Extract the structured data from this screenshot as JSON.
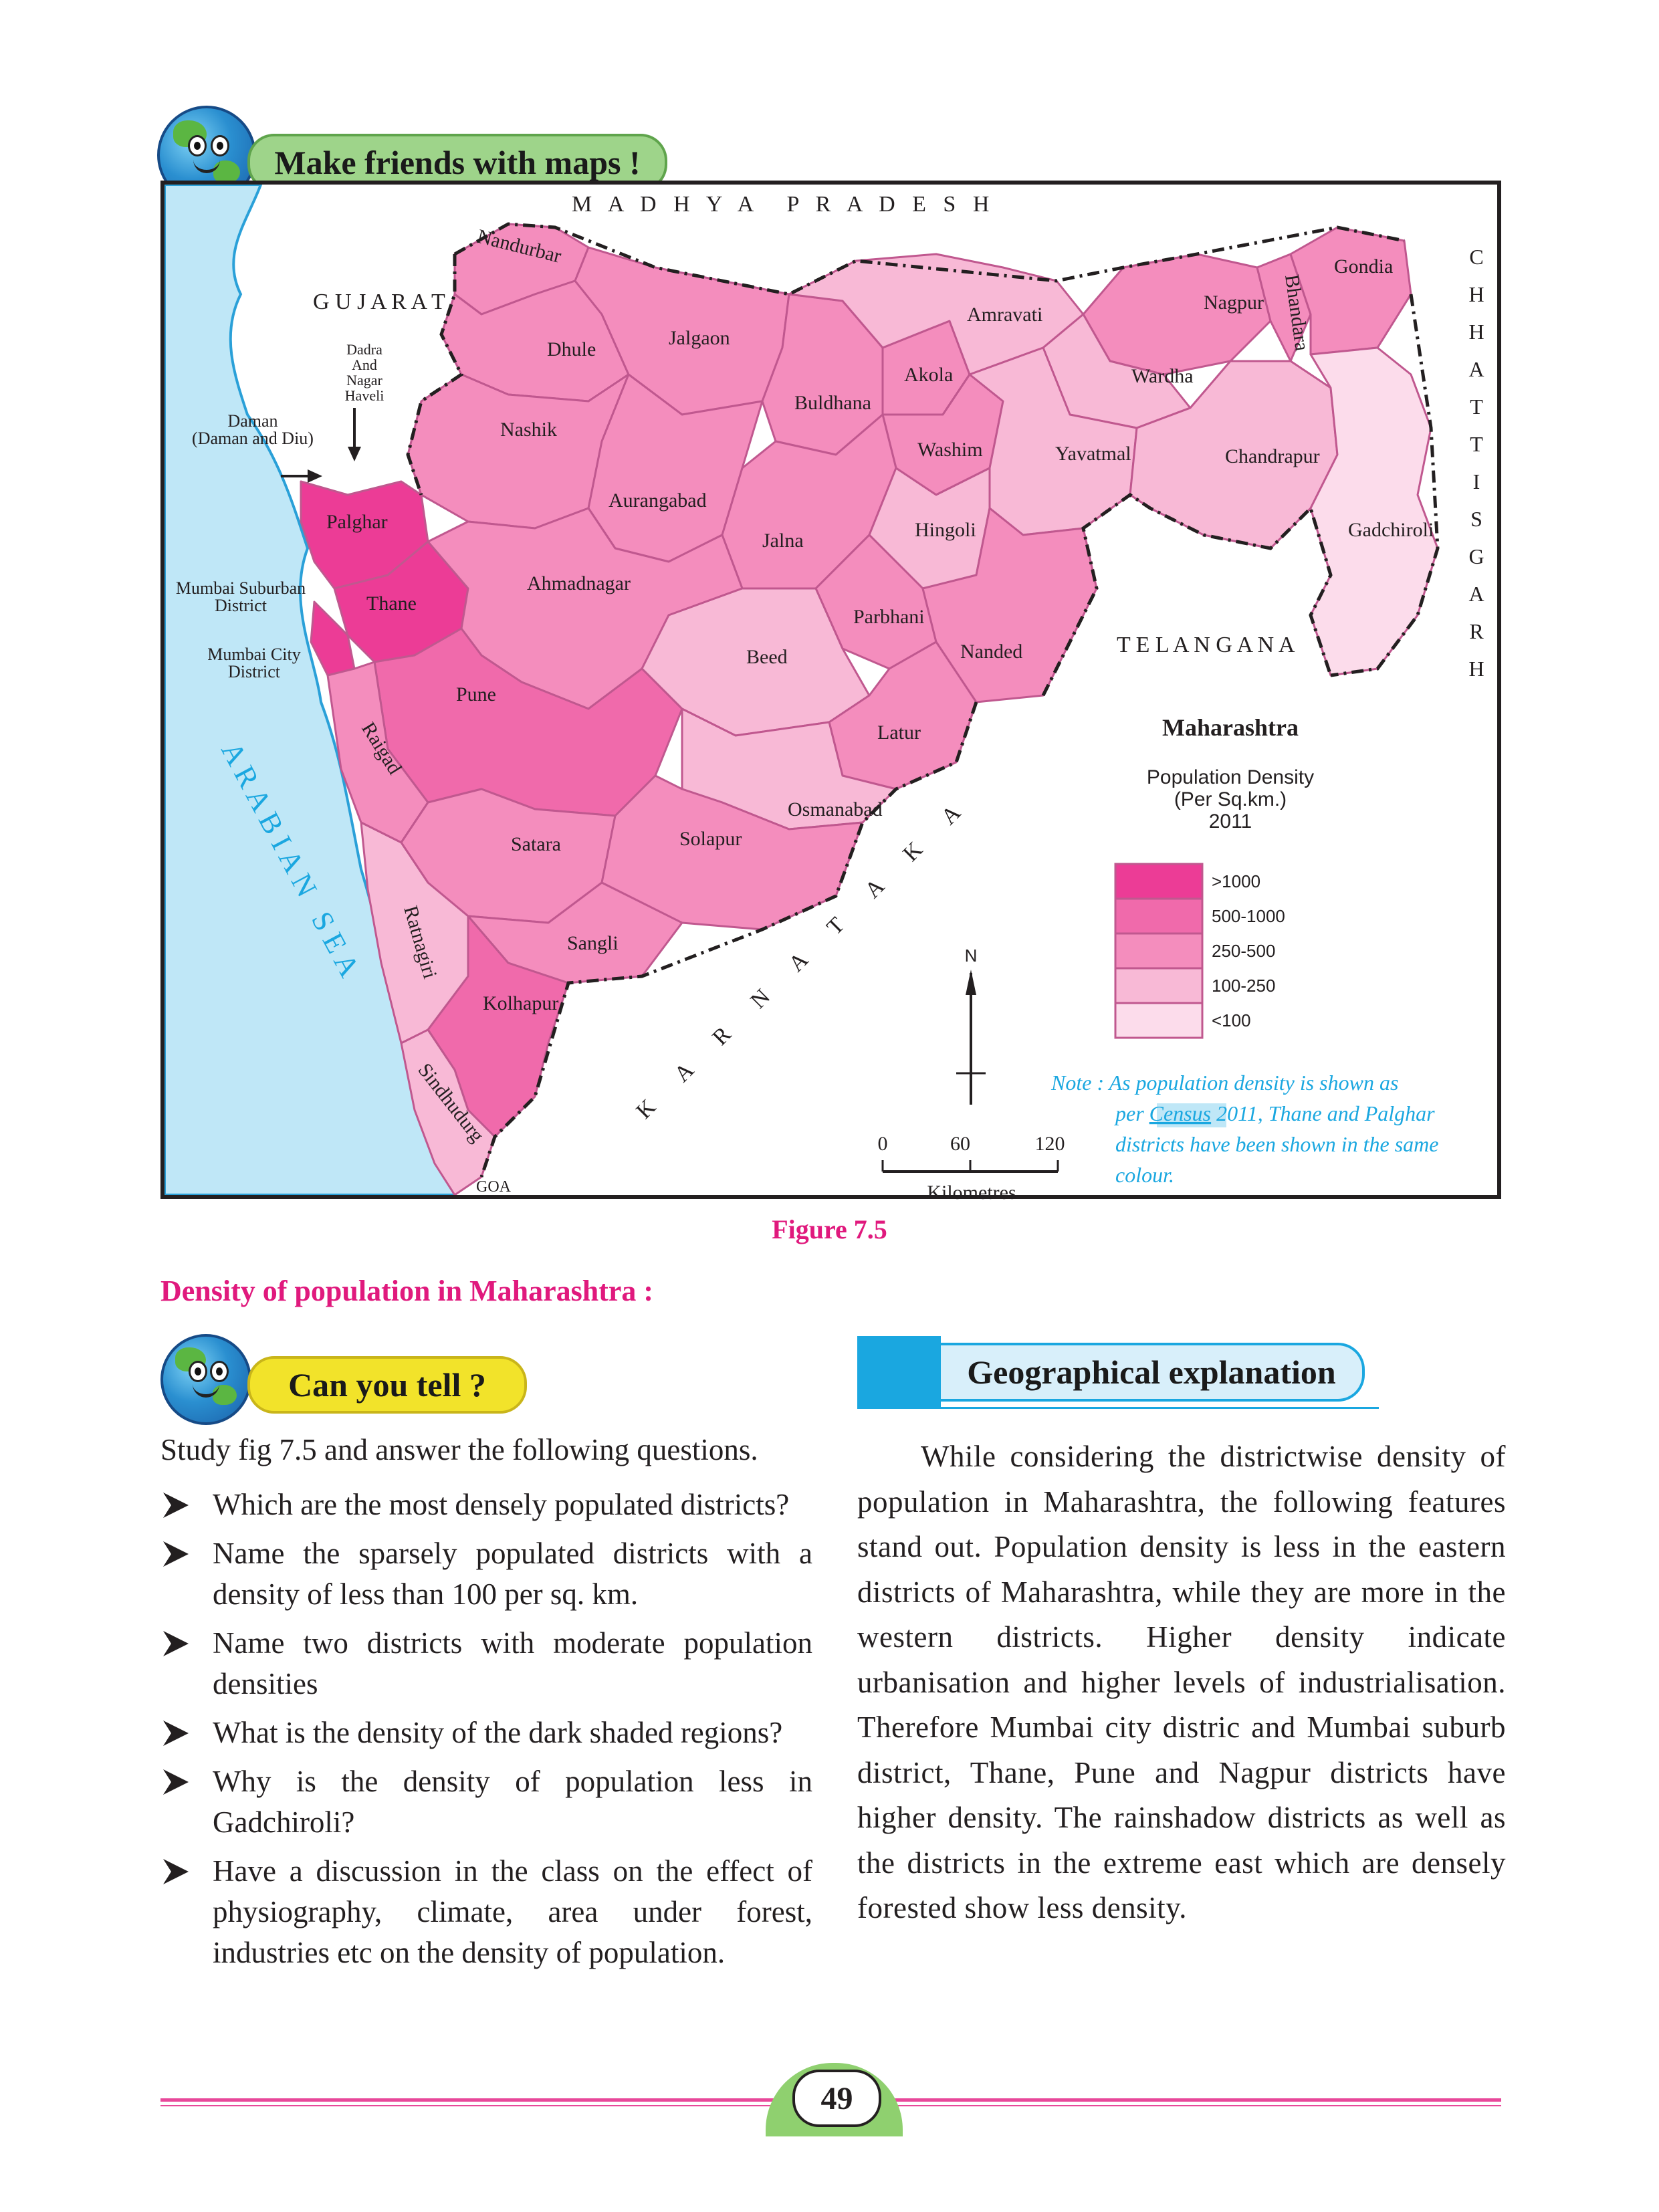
{
  "header": {
    "badge_title": "Make friends with maps !"
  },
  "map": {
    "neighbors": {
      "madhya_pradesh": "M   A   D   H   Y   A      P   R   A   D   E   S   H",
      "gujarat": "G U J A R A T",
      "chhattisgarh_letters": [
        "C",
        "H",
        "H",
        "A",
        "T",
        "T",
        "I",
        "S",
        "G",
        "A",
        "R",
        "H"
      ],
      "telangana": "T E L A N G A N A",
      "karnataka_letters": [
        "K",
        "A",
        "R",
        "N",
        "A",
        "T",
        "A",
        "K",
        "A"
      ],
      "arabian_sea": "A R A B I A N   S E A",
      "goa": "GOA"
    },
    "external_labels": {
      "dadra_1": "Dadra",
      "dadra_2": "And",
      "dadra_3": "Nagar",
      "dadra_4": "Haveli",
      "daman_1": "Daman",
      "daman_2": "(Daman and Diu)",
      "mumbai_sub_1": "Mumbai Suburban",
      "mumbai_sub_2": "District",
      "mumbai_city_1": "Mumbai City",
      "mumbai_city_2": "District"
    },
    "districts": [
      {
        "name": "Nandurbar",
        "class": "250-500"
      },
      {
        "name": "Dhule",
        "class": "250-500"
      },
      {
        "name": "Jalgaon",
        "class": "250-500"
      },
      {
        "name": "Nashik",
        "class": "250-500"
      },
      {
        "name": "Palghar",
        "class": ">1000"
      },
      {
        "name": "Thane",
        "class": ">1000"
      },
      {
        "name": "Aurangabad",
        "class": "250-500"
      },
      {
        "name": "Buldhana",
        "class": "250-500"
      },
      {
        "name": "Akola",
        "class": "250-500"
      },
      {
        "name": "Amravati",
        "class": "100-250"
      },
      {
        "name": "Nagpur",
        "class": "250-500"
      },
      {
        "name": "Bhandara",
        "class": "250-500"
      },
      {
        "name": "Gondia",
        "class": "250-500"
      },
      {
        "name": "Wardha",
        "class": "100-250"
      },
      {
        "name": "Washim",
        "class": "250-500"
      },
      {
        "name": "Yavatmal",
        "class": "100-250"
      },
      {
        "name": "Chandrapur",
        "class": "100-250"
      },
      {
        "name": "Gadchiroli",
        "class": "<100"
      },
      {
        "name": "Jalna",
        "class": "250-500"
      },
      {
        "name": "Hingoli",
        "class": "100-250"
      },
      {
        "name": "Ahmadnagar",
        "class": "250-500"
      },
      {
        "name": "Parbhani",
        "class": "250-500"
      },
      {
        "name": "Nanded",
        "class": "250-500"
      },
      {
        "name": "Beed",
        "class": "100-250"
      },
      {
        "name": "Pune",
        "class": "500-1000"
      },
      {
        "name": "Latur",
        "class": "250-500"
      },
      {
        "name": "Osmanabad",
        "class": "100-250"
      },
      {
        "name": "Raigad",
        "class": "250-500"
      },
      {
        "name": "Satara",
        "class": "250-500"
      },
      {
        "name": "Solapur",
        "class": "250-500"
      },
      {
        "name": "Sangli",
        "class": "250-500"
      },
      {
        "name": "Ratnagiri",
        "class": "100-250"
      },
      {
        "name": "Kolhapur",
        "class": "500-1000"
      },
      {
        "name": "Sindhudurg",
        "class": "100-250"
      }
    ],
    "legend": {
      "title": "Maharashtra",
      "sub1": "Population Density",
      "sub2": "(Per Sq.km.)",
      "sub3": "2011",
      "items": [
        {
          "label": ">1000",
          "color": "#ec3c96"
        },
        {
          "label": "500-1000",
          "color": "#f06aab"
        },
        {
          "label": "250-500",
          "color": "#f48dbd"
        },
        {
          "label": "100-250",
          "color": "#f8b9d6"
        },
        {
          "label": "<100",
          "color": "#fcdceb"
        }
      ]
    },
    "compass": {
      "north": "N"
    },
    "scale": {
      "t0": "0",
      "t1": "60",
      "t2": "120",
      "unit": "Kilometres"
    },
    "note": {
      "l1": "Note : As population density is shown as",
      "l2_pre": "per ",
      "l2_census": "Census",
      "l2_post": " 2011, Thane and Palghar",
      "l3": "districts have been shown in the same",
      "l4": "colour."
    }
  },
  "figure_caption": "Figure 7.5",
  "section_heading": "Density of population in Maharashtra :",
  "can_you_tell": {
    "badge": "Can you tell ?",
    "intro": "Study fig 7.5 and answer the following questions.",
    "questions": [
      "Which are the most densely populated districts?",
      "Name the sparsely populated districts with a density of less than 100 per sq. km.",
      "Name two districts with moderate population densities",
      "What is the density of the dark shaded regions?",
      "Why is the density of population less in Gadchiroli?",
      "Have a discussion in the class on the effect of physiography, climate, area under forest, industries etc on the density of population."
    ]
  },
  "geo_explanation": {
    "title": "Geographical explanation",
    "paragraph": "While considering the districtwise density of population in Maharashtra, the following features stand out. Population density is less in the eastern districts of Maharashtra, while they are more in the western districts. Higher density indicate urbanisation and higher levels of industrialisation. Therefore Mumbai city distric and Mumbai suburb district, Thane, Pune and Nagpur districts have higher density. The rainshadow districts as well as the districts in the extreme east which are densely forested show less density."
  },
  "page_number": "49"
}
